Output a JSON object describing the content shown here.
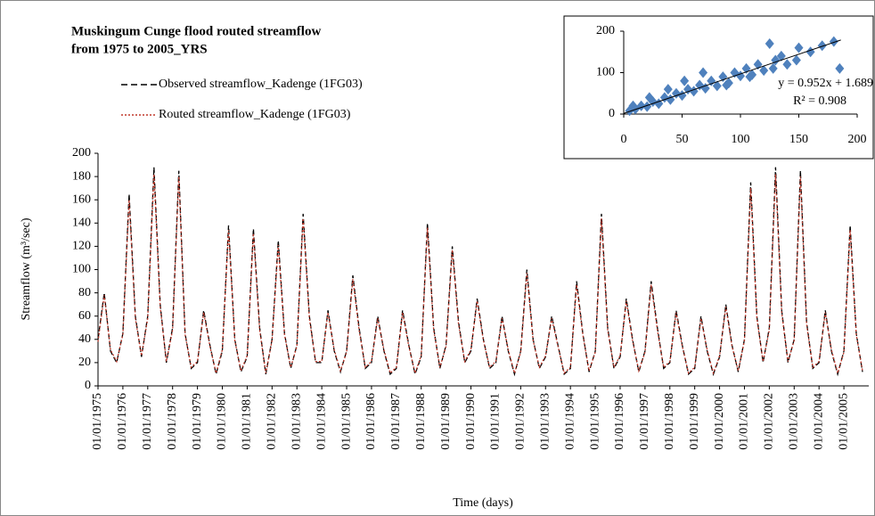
{
  "chart_data": [
    {
      "type": "line",
      "title": [
        "Muskingum Cunge flood routed streamflow",
        "from 1975 to 2005_YRS"
      ],
      "y_label": "Streamflow (m³/sec)",
      "x_label": "Time (days)",
      "ylim": [
        0,
        200
      ],
      "yticks": [
        0,
        20,
        40,
        60,
        80,
        100,
        120,
        140,
        160,
        180,
        200
      ],
      "xticks": [
        "01/01/1975",
        "01/01/1976",
        "01/01/1977",
        "01/01/1978",
        "01/01/1979",
        "01/01/1980",
        "01/01/1981",
        "01/01/1982",
        "01/01/1983",
        "01/01/1984",
        "01/01/1985",
        "01/01/1986",
        "01/01/1987",
        "01/01/1988",
        "01/01/1989",
        "01/01/1990",
        "01/01/1991",
        "01/01/1992",
        "01/01/1993",
        "01/01/1994",
        "01/01/1995",
        "01/01/1996",
        "01/01/1997",
        "01/01/1998",
        "01/01/1999",
        "01/01/2000",
        "01/01/2001",
        "01/01/2002",
        "01/01/2003",
        "01/01/2004",
        "01/01/2005"
      ],
      "x": [
        "01/01/1975",
        "01/04/1975",
        "01/07/1975",
        "01/10/1975",
        "01/01/1976",
        "01/04/1976",
        "01/07/1976",
        "01/10/1976",
        "01/01/1977",
        "01/04/1977",
        "01/07/1977",
        "01/10/1977",
        "01/01/1978",
        "01/04/1978",
        "01/07/1978",
        "01/10/1978",
        "01/01/1979",
        "01/04/1979",
        "01/07/1979",
        "01/10/1979",
        "01/01/1980",
        "01/04/1980",
        "01/07/1980",
        "01/10/1980",
        "01/01/1981",
        "01/04/1981",
        "01/07/1981",
        "01/10/1981",
        "01/01/1982",
        "01/04/1982",
        "01/07/1982",
        "01/10/1982",
        "01/01/1983",
        "01/04/1983",
        "01/07/1983",
        "01/10/1983",
        "01/01/1984",
        "01/04/1984",
        "01/07/1984",
        "01/10/1984",
        "01/01/1985",
        "01/04/1985",
        "01/07/1985",
        "01/10/1985",
        "01/01/1986",
        "01/04/1986",
        "01/07/1986",
        "01/10/1986",
        "01/01/1987",
        "01/04/1987",
        "01/07/1987",
        "01/10/1987",
        "01/01/1988",
        "01/04/1988",
        "01/07/1988",
        "01/10/1988",
        "01/01/1989",
        "01/04/1989",
        "01/07/1989",
        "01/10/1989",
        "01/01/1990",
        "01/04/1990",
        "01/07/1990",
        "01/10/1990",
        "01/01/1991",
        "01/04/1991",
        "01/07/1991",
        "01/10/1991",
        "01/01/1992",
        "01/04/1992",
        "01/07/1992",
        "01/10/1992",
        "01/01/1993",
        "01/04/1993",
        "01/07/1993",
        "01/10/1993",
        "01/01/1994",
        "01/04/1994",
        "01/07/1994",
        "01/10/1994",
        "01/01/1995",
        "01/04/1995",
        "01/07/1995",
        "01/10/1995",
        "01/01/1996",
        "01/04/1996",
        "01/07/1996",
        "01/10/1996",
        "01/01/1997",
        "01/04/1997",
        "01/07/1997",
        "01/10/1997",
        "01/01/1998",
        "01/04/1998",
        "01/07/1998",
        "01/10/1998",
        "01/01/1999",
        "01/04/1999",
        "01/07/1999",
        "01/10/1999",
        "01/01/2000",
        "01/04/2000",
        "01/07/2000",
        "01/10/2000",
        "01/01/2001",
        "01/04/2001",
        "01/07/2001",
        "01/10/2001",
        "01/01/2002",
        "01/04/2002",
        "01/07/2002",
        "01/10/2002",
        "01/01/2003",
        "01/04/2003",
        "01/07/2003",
        "01/10/2003",
        "01/01/2004",
        "01/04/2004",
        "01/07/2004",
        "01/10/2004",
        "01/01/2005",
        "01/04/2005",
        "01/07/2005",
        "01/10/2005"
      ],
      "series": [
        {
          "name": "Observed streamflow_Kadenge (1FG03)",
          "color": "#000000",
          "dash": "dashed",
          "values": [
            40,
            80,
            30,
            20,
            45,
            165,
            60,
            25,
            60,
            188,
            70,
            20,
            50,
            185,
            45,
            15,
            20,
            65,
            35,
            10,
            30,
            138,
            40,
            12,
            25,
            135,
            50,
            10,
            40,
            125,
            45,
            15,
            35,
            148,
            60,
            20,
            20,
            65,
            30,
            12,
            30,
            95,
            50,
            15,
            20,
            60,
            30,
            10,
            15,
            65,
            35,
            10,
            25,
            140,
            50,
            15,
            35,
            120,
            55,
            20,
            30,
            75,
            40,
            15,
            20,
            60,
            30,
            10,
            30,
            100,
            40,
            15,
            25,
            60,
            35,
            10,
            15,
            90,
            45,
            12,
            30,
            148,
            50,
            15,
            25,
            75,
            40,
            12,
            30,
            90,
            50,
            15,
            20,
            65,
            35,
            10,
            15,
            60,
            30,
            10,
            25,
            70,
            35,
            12,
            40,
            175,
            60,
            20,
            50,
            188,
            65,
            20,
            40,
            185,
            55,
            15,
            20,
            65,
            30,
            10,
            30,
            138,
            45,
            12
          ]
        },
        {
          "name": "Routed streamflow_Kadenge (1FG03)",
          "color": "#c0392b",
          "dash": "dotted",
          "values": [
            38,
            78,
            31,
            21,
            44,
            160,
            58,
            26,
            58,
            182,
            68,
            21,
            48,
            180,
            44,
            16,
            21,
            63,
            34,
            11,
            31,
            134,
            39,
            13,
            26,
            131,
            48,
            11,
            39,
            121,
            44,
            16,
            34,
            144,
            58,
            21,
            21,
            63,
            31,
            13,
            29,
            92,
            48,
            16,
            21,
            58,
            31,
            11,
            16,
            63,
            34,
            11,
            26,
            136,
            48,
            16,
            34,
            117,
            53,
            21,
            31,
            73,
            39,
            16,
            21,
            58,
            31,
            11,
            29,
            97,
            39,
            16,
            26,
            58,
            34,
            11,
            16,
            87,
            44,
            13,
            29,
            144,
            48,
            16,
            26,
            73,
            39,
            13,
            29,
            87,
            48,
            16,
            21,
            63,
            34,
            11,
            16,
            58,
            31,
            11,
            26,
            68,
            34,
            13,
            39,
            170,
            58,
            21,
            48,
            182,
            63,
            21,
            39,
            180,
            53,
            16,
            21,
            63,
            31,
            11,
            29,
            134,
            44,
            13
          ]
        }
      ]
    },
    {
      "type": "scatter",
      "xlim": [
        0,
        200
      ],
      "xticks": [
        0,
        50,
        100,
        150,
        200
      ],
      "ylim": [
        0,
        200
      ],
      "yticks": [
        0,
        100,
        200
      ],
      "color": "#4f81bd",
      "x": [
        5,
        10,
        15,
        20,
        25,
        30,
        35,
        40,
        45,
        50,
        55,
        60,
        65,
        70,
        75,
        80,
        85,
        90,
        95,
        100,
        105,
        110,
        115,
        120,
        125,
        130,
        135,
        140,
        150,
        160,
        170,
        180,
        185,
        8,
        22,
        38,
        52,
        68,
        88,
        108,
        128,
        148
      ],
      "values": [
        8,
        12,
        20,
        18,
        30,
        25,
        40,
        35,
        50,
        45,
        60,
        55,
        70,
        62,
        80,
        68,
        90,
        75,
        100,
        92,
        110,
        95,
        120,
        105,
        170,
        130,
        140,
        120,
        160,
        150,
        165,
        175,
        110,
        20,
        40,
        60,
        80,
        100,
        70,
        90,
        110,
        130
      ],
      "trendline": {
        "slope": 0.952,
        "intercept": 1.689
      },
      "equation": "y = 0.952x + 1.689",
      "r2": "R² = 0.908"
    }
  ]
}
